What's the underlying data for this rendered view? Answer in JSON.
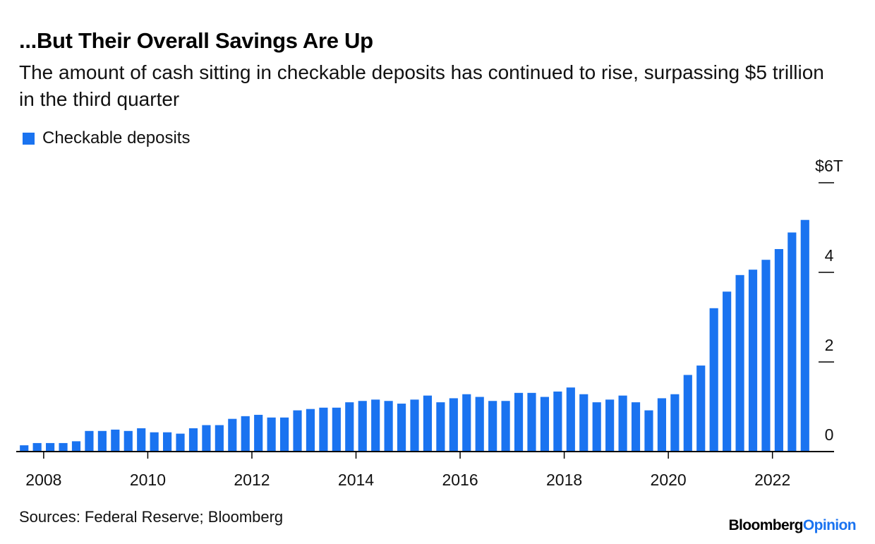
{
  "chart_data": {
    "type": "bar",
    "title": "...But Their Overall Savings Are Up",
    "subtitle": "The amount of cash sitting in checkable deposits has continued to rise, surpassing $5 trillion in the third quarter",
    "legend": [
      "Checkable deposits"
    ],
    "legend_position": "top-left",
    "series": [
      {
        "name": "Checkable deposits",
        "color": "#1a73f0",
        "values": [
          0.14,
          0.19,
          0.19,
          0.19,
          0.23,
          0.46,
          0.46,
          0.49,
          0.46,
          0.52,
          0.43,
          0.43,
          0.4,
          0.52,
          0.59,
          0.59,
          0.73,
          0.79,
          0.82,
          0.76,
          0.76,
          0.92,
          0.95,
          0.98,
          0.98,
          1.1,
          1.13,
          1.16,
          1.13,
          1.07,
          1.16,
          1.25,
          1.1,
          1.19,
          1.28,
          1.22,
          1.13,
          1.13,
          1.31,
          1.31,
          1.22,
          1.34,
          1.43,
          1.28,
          1.1,
          1.16,
          1.25,
          1.1,
          0.92,
          1.19,
          1.28,
          1.71,
          1.92,
          3.2,
          3.57,
          3.94,
          4.06,
          4.28,
          4.52,
          4.89,
          5.17
        ]
      }
    ],
    "x_start": 2007.5,
    "x_end": 2022.75,
    "x_ticks": [
      2008,
      2010,
      2012,
      2014,
      2016,
      2018,
      2020,
      2022
    ],
    "x_tick_labels": [
      "2008",
      "2010",
      "2012",
      "2014",
      "2016",
      "2018",
      "2020",
      "2022"
    ],
    "y_ticks": [
      0,
      2,
      4,
      6
    ],
    "y_tick_labels": [
      "0",
      "2",
      "4",
      "$6T"
    ],
    "ylim": [
      0,
      6
    ],
    "xlabel": "",
    "ylabel": "",
    "grid": false
  },
  "footer": {
    "source": "Sources: Federal Reserve; Bloomberg",
    "brand_main": "Bloomberg",
    "brand_accent": "Opinion"
  }
}
